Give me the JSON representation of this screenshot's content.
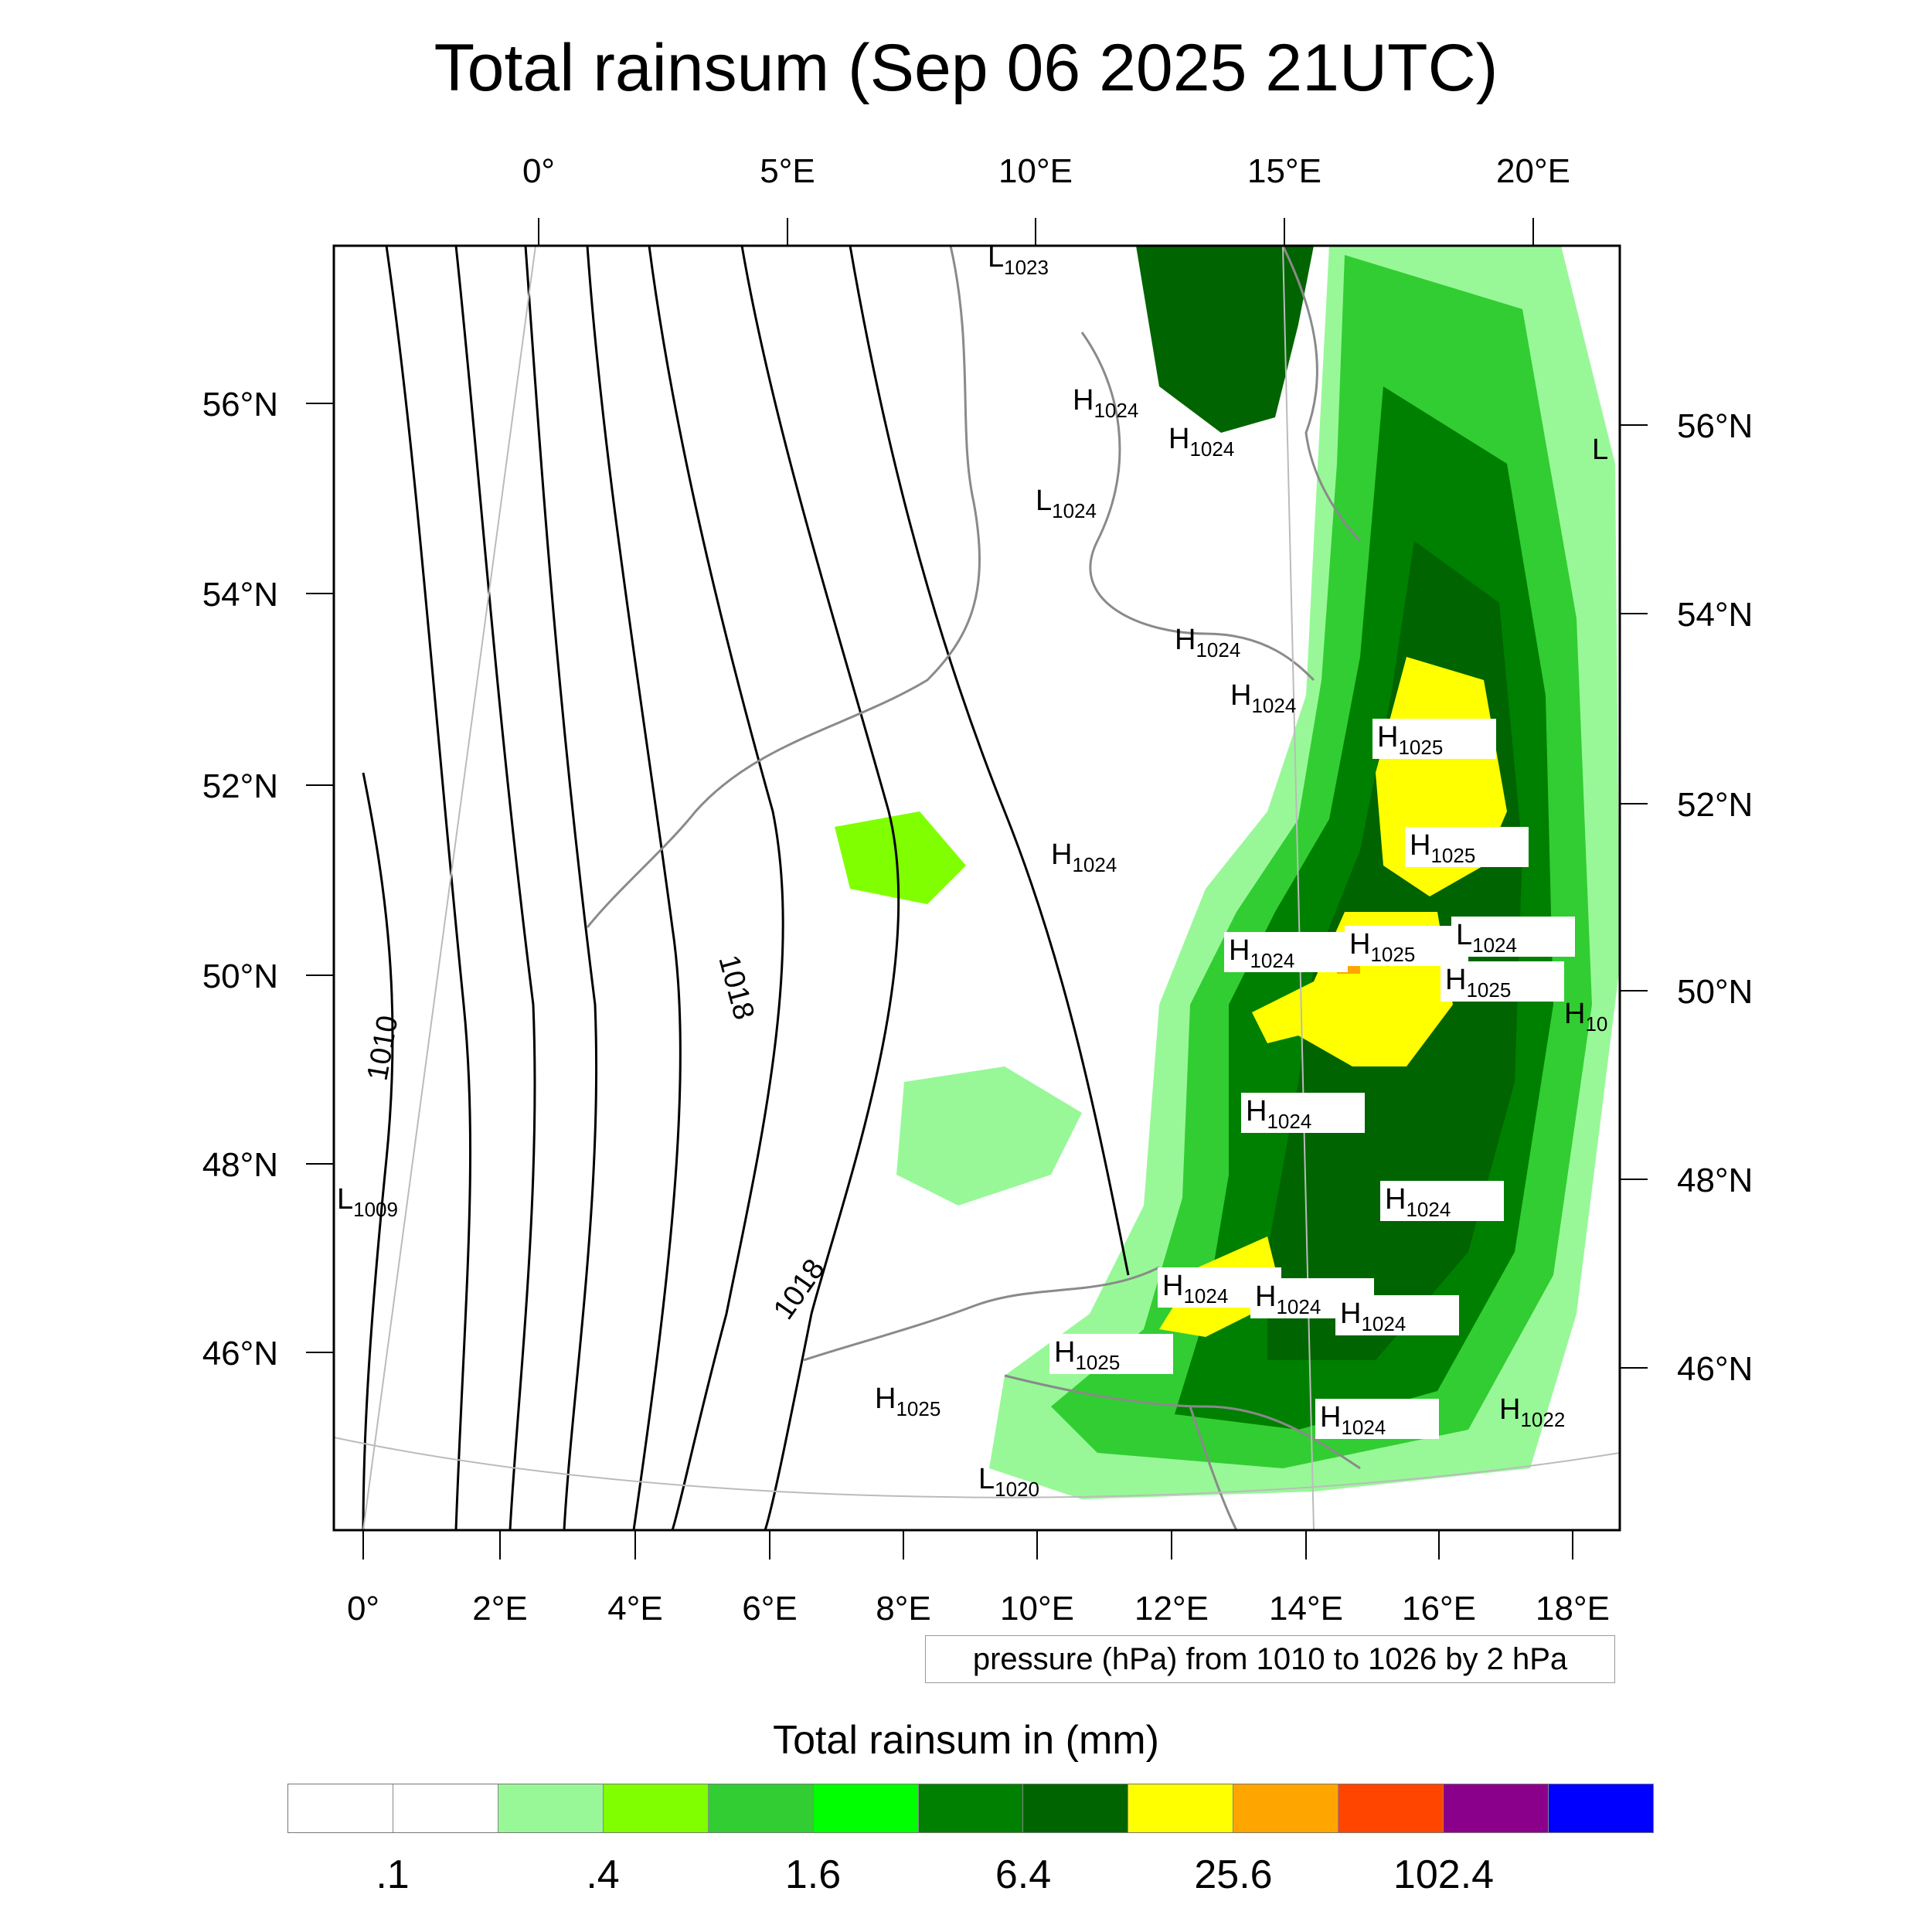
{
  "title": "Total rainsum (Sep 06 2025 21UTC)",
  "map": {
    "top_axis_labels": [
      "0°",
      "5°E",
      "10°E",
      "15°E",
      "20°E"
    ],
    "bottom_axis_labels": [
      "0°",
      "2°E",
      "4°E",
      "6°E",
      "8°E",
      "10°E",
      "12°E",
      "14°E",
      "16°E",
      "18°E"
    ],
    "left_axis_labels": [
      "56°N",
      "54°N",
      "52°N",
      "50°N",
      "48°N",
      "46°N"
    ],
    "right_axis_labels": [
      "56°N",
      "54°N",
      "52°N",
      "50°N",
      "48°N",
      "46°N"
    ],
    "contour_labels": [
      "1010",
      "1018",
      "1018"
    ],
    "pressure_centers": [
      {
        "letter": "L",
        "value": "1023"
      },
      {
        "letter": "H",
        "value": "1024"
      },
      {
        "letter": "H",
        "value": "1024"
      },
      {
        "letter": "L",
        "value": "1024"
      },
      {
        "letter": "H",
        "value": "1024"
      },
      {
        "letter": "H",
        "value": "1024"
      },
      {
        "letter": "H",
        "value": "1025"
      },
      {
        "letter": "H",
        "value": "1025"
      },
      {
        "letter": "H",
        "value": "1024"
      },
      {
        "letter": "H",
        "value": "1024"
      },
      {
        "letter": "H",
        "value": "1025"
      },
      {
        "letter": "L",
        "value": "1024"
      },
      {
        "letter": "H",
        "value": "1025"
      },
      {
        "letter": "H",
        "value": "10"
      },
      {
        "letter": "H",
        "value": "1024"
      },
      {
        "letter": "H",
        "value": "1024"
      },
      {
        "letter": "H",
        "value": "1024"
      },
      {
        "letter": "H",
        "value": "1024"
      },
      {
        "letter": "H",
        "value": "1024"
      },
      {
        "letter": "H",
        "value": "1025"
      },
      {
        "letter": "H",
        "value": "1025"
      },
      {
        "letter": "H",
        "value": "1024"
      },
      {
        "letter": "H",
        "value": "1022"
      },
      {
        "letter": "L",
        "value": "1020"
      },
      {
        "letter": "L",
        "value": "1009"
      },
      {
        "letter": "L",
        "value": ""
      }
    ]
  },
  "pressure_note": "pressure (hPa) from 1010 to 1026 by 2 hPa",
  "colorbar": {
    "title": "Total rainsum in (mm)",
    "colors": [
      "#ffffff",
      "#ffffff",
      "#98f898",
      "#80ff00",
      "#32cd32",
      "#00ff00",
      "#008000",
      "#006400",
      "#ffff00",
      "#ffa500",
      "#ff4500",
      "#8b008b",
      "#0000ff"
    ],
    "labels": [
      ".1",
      ".4",
      "1.6",
      "6.4",
      "25.6",
      "102.4"
    ]
  }
}
